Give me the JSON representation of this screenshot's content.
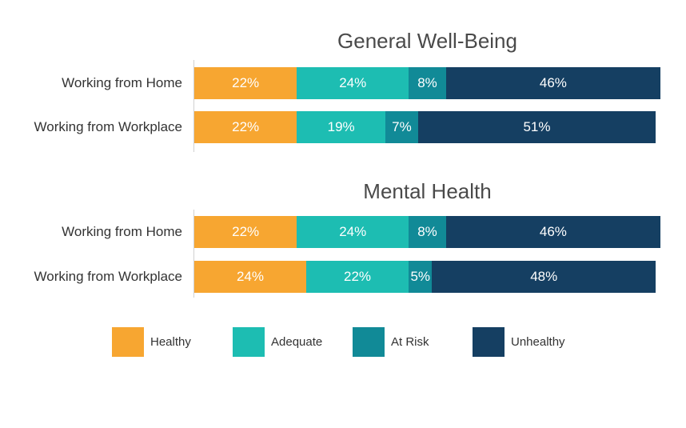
{
  "colors": {
    "Healthy": "#F7A631",
    "Adequate": "#1DBDB2",
    "At Risk": "#118A97",
    "Unhealthy": "#153F62"
  },
  "chart_data": [
    {
      "type": "bar",
      "orientation": "horizontal",
      "stacked": true,
      "title": "General Well-Being",
      "categories": [
        "Working from Home",
        "Working from Workplace"
      ],
      "series": [
        {
          "name": "Healthy",
          "values": [
            22,
            22
          ],
          "labels": [
            "22%",
            "22%"
          ]
        },
        {
          "name": "Adequate",
          "values": [
            24,
            19
          ],
          "labels": [
            "24%",
            "19%"
          ]
        },
        {
          "name": "At Risk",
          "values": [
            8,
            7
          ],
          "labels": [
            "8%",
            "7%"
          ]
        },
        {
          "name": "Unhealthy",
          "values": [
            46,
            51
          ],
          "labels": [
            "46%",
            "51%"
          ]
        }
      ],
      "xlim": [
        0,
        100
      ],
      "grid": false
    },
    {
      "type": "bar",
      "orientation": "horizontal",
      "stacked": true,
      "title": "Mental Health",
      "categories": [
        "Working from Home",
        "Working from Workplace"
      ],
      "series": [
        {
          "name": "Healthy",
          "values": [
            22,
            24
          ],
          "labels": [
            "22%",
            "24%"
          ]
        },
        {
          "name": "Adequate",
          "values": [
            24,
            22
          ],
          "labels": [
            "24%",
            "22%"
          ]
        },
        {
          "name": "At Risk",
          "values": [
            8,
            5
          ],
          "labels": [
            "8%",
            "5%"
          ]
        },
        {
          "name": "Unhealthy",
          "values": [
            46,
            48
          ],
          "labels": [
            "46%",
            "48%"
          ]
        }
      ],
      "xlim": [
        0,
        100
      ],
      "grid": false
    }
  ],
  "legend": {
    "placement": "bottom",
    "items": [
      "Healthy",
      "Adequate",
      "At Risk",
      "Unhealthy"
    ]
  }
}
